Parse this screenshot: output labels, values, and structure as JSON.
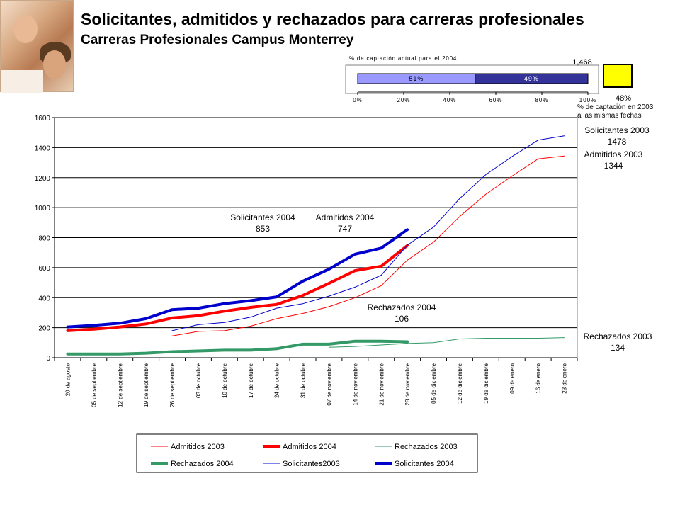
{
  "header": {
    "title": "Solicitantes, admitidos y rechazados para carreras profesionales",
    "subtitle": "Carreras Profesionales Campus Monterrey"
  },
  "capture_widget": {
    "title": "% de captación actual para el 2004",
    "total": "1,468",
    "segments": [
      {
        "label": "51%",
        "value": 51,
        "color": "#9999ff"
      },
      {
        "label": "49%",
        "value": 49,
        "color": "#333399"
      }
    ],
    "ticks": [
      "0%",
      "20%",
      "40%",
      "60%",
      "80%",
      "100%"
    ],
    "prev_pct": "48%",
    "prev_label_line1": "% de captación en 2003",
    "prev_label_line2": "a las mismas fechas",
    "indicator_color": "#ffff00"
  },
  "chart_data": {
    "type": "line",
    "ylim": [
      0,
      1600
    ],
    "yticks": [
      0,
      200,
      400,
      600,
      800,
      1000,
      1200,
      1400,
      1600
    ],
    "categories": [
      "20 de agosto",
      "05 de septiembre",
      "12 de septiembre",
      "19 de septiembre",
      "26 de septiembre",
      "03 de octubre",
      "10 de octubre",
      "17 de octubre",
      "24 de octubre",
      "31 de octubre",
      "07 de noviembre",
      "14 de noviembre",
      "21 de noviembre",
      "28 de noviembre",
      "05 de diciembre",
      "12 de diciembre",
      "19 de diciembre",
      "09 de enero",
      "16 de enero",
      "23 de enero"
    ],
    "series": [
      {
        "name": "Admitidos 2003",
        "color": "#ff0000",
        "width": 1,
        "values": [
          null,
          null,
          null,
          null,
          145,
          175,
          180,
          210,
          260,
          295,
          340,
          400,
          480,
          650,
          770,
          940,
          1090,
          1210,
          1325,
          1344
        ]
      },
      {
        "name": "Admitidos 2004",
        "color": "#ff0000",
        "width": 4,
        "values": [
          180,
          190,
          205,
          225,
          265,
          280,
          310,
          335,
          355,
          415,
          495,
          580,
          610,
          747,
          null,
          null,
          null,
          null,
          null,
          null
        ]
      },
      {
        "name": "Rechazados 2003",
        "color": "#339966",
        "width": 1,
        "values": [
          null,
          null,
          null,
          null,
          null,
          null,
          null,
          null,
          null,
          null,
          70,
          75,
          85,
          95,
          100,
          125,
          130,
          130,
          130,
          134
        ]
      },
      {
        "name": "Rechazados 2004",
        "color": "#339966",
        "width": 4,
        "values": [
          25,
          25,
          25,
          30,
          40,
          45,
          50,
          50,
          60,
          90,
          90,
          110,
          110,
          106,
          null,
          null,
          null,
          null,
          null,
          null
        ]
      },
      {
        "name": "Solicitantes2003",
        "color": "#0000cc",
        "width": 1,
        "values": [
          null,
          null,
          null,
          null,
          180,
          220,
          235,
          270,
          330,
          360,
          410,
          470,
          550,
          750,
          870,
          1060,
          1220,
          1340,
          1450,
          1478
        ]
      },
      {
        "name": "Solicitantes 2004",
        "color": "#0000cc",
        "width": 4,
        "values": [
          205,
          215,
          230,
          260,
          320,
          330,
          360,
          380,
          405,
          510,
          590,
          690,
          730,
          853,
          null,
          null,
          null,
          null,
          null,
          null
        ]
      }
    ],
    "annotations": [
      {
        "line1": "Solicitantes 2003",
        "line2": "1478"
      },
      {
        "line1": "Admitidos 2003",
        "line2": "1344"
      },
      {
        "line1": "Solicitantes 2004",
        "line2": "853"
      },
      {
        "line1": "Admitidos 2004",
        "line2": "747"
      },
      {
        "line1": "Rechazados 2004",
        "line2": "106"
      },
      {
        "line1": "Rechazados 2003",
        "line2": "134"
      }
    ],
    "legend": {
      "placement": "bottom",
      "entries": [
        "Admitidos 2003",
        "Admitidos 2004",
        "Rechazados 2003",
        "Rechazados 2004",
        "Solicitantes2003",
        "Solicitantes 2004"
      ]
    },
    "grid": true
  }
}
